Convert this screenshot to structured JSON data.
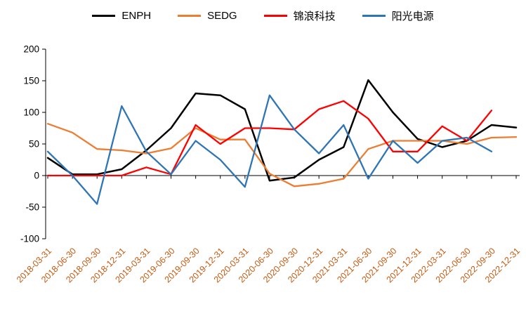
{
  "legend": [
    {
      "label": "ENPH",
      "color": "#000000"
    },
    {
      "label": "SEDG",
      "color": "#ED7D31"
    },
    {
      "label": "锦浪科技",
      "color": "#FF0000"
    },
    {
      "label": "阳光电源",
      "color": "#2E75B6"
    }
  ],
  "chart_data": {
    "type": "line",
    "title": "",
    "xlabel": "",
    "ylabel": "",
    "categories": [
      "2018-03-31",
      "2018-06-30",
      "2018-09-30",
      "2018-12-31",
      "2019-03-31",
      "2019-06-30",
      "2019-09-30",
      "2019-12-31",
      "2020-03-31",
      "2020-06-30",
      "2020-09-30",
      "2020-12-31",
      "2021-03-31",
      "2021-06-30",
      "2021-09-30",
      "2021-12-31",
      "2022-03-31",
      "2022-06-30",
      "2022-09-30",
      "2022-12-31"
    ],
    "series": [
      {
        "name": "ENPH",
        "color": "#000000",
        "values": [
          28,
          2,
          2,
          10,
          40,
          75,
          130,
          127,
          105,
          -8,
          -3,
          25,
          45,
          151,
          100,
          58,
          45,
          55,
          80,
          76
        ]
      },
      {
        "name": "SEDG",
        "color": "#ED7D31",
        "values": [
          82,
          68,
          42,
          40,
          35,
          43,
          75,
          57,
          57,
          3,
          -17,
          -13,
          -5,
          42,
          55,
          55,
          55,
          50,
          60,
          61
        ]
      },
      {
        "name": "锦浪科技",
        "color": "#FF0000",
        "values": [
          0,
          0,
          0,
          0,
          13,
          2,
          80,
          50,
          75,
          75,
          73,
          105,
          118,
          90,
          38,
          38,
          78,
          55,
          103,
          null
        ]
      },
      {
        "name": "阳光电源",
        "color": "#2E75B6",
        "values": [
          38,
          0,
          -45,
          110,
          38,
          2,
          55,
          25,
          -18,
          127,
          73,
          35,
          80,
          -5,
          55,
          20,
          55,
          60,
          38,
          null
        ]
      }
    ],
    "ylim": [
      -100,
      200
    ],
    "yticks": [
      200,
      150,
      100,
      50,
      0,
      -50,
      -100
    ],
    "grid": false,
    "legend_position": "top",
    "x_tick_label_color": "#C55A11",
    "y_tick_label_color": "#000000",
    "axis_color": "#000000"
  }
}
